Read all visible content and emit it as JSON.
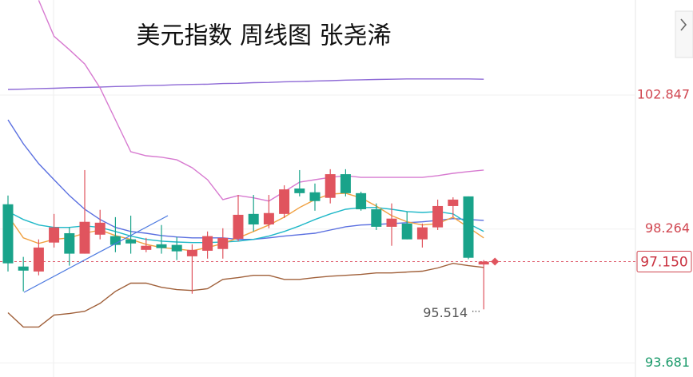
{
  "chart_data": {
    "type": "candlestick",
    "title": "美元指数 周线图 张尧浠",
    "ylim": [
      93.2,
      106.1
    ],
    "yticks": [
      102.847,
      98.264,
      93.681
    ],
    "ytick_colors": [
      "#d0454f",
      "#d0454f",
      "#1a9a6a"
    ],
    "grid": true,
    "up_color": "#e0545e",
    "down_color": "#19a38a",
    "open": [
      99.11,
      96.98,
      96.81,
      97.8,
      98.12,
      97.42,
      98.07,
      98.02,
      97.91,
      97.55,
      97.74,
      97.72,
      97.33,
      97.52,
      97.58,
      97.93,
      98.78,
      98.42,
      98.78,
      99.65,
      99.52,
      99.33,
      100.14,
      99.49,
      98.94,
      98.34,
      98.45,
      97.91,
      98.32,
      99.05,
      99.38,
      97.05
    ],
    "high": [
      99.41,
      97.31,
      97.91,
      98.78,
      98.32,
      100.28,
      98.92,
      98.67,
      98.72,
      97.96,
      98.4,
      97.99,
      97.74,
      98.18,
      98.29,
      99.43,
      99.43,
      99.43,
      99.76,
      100.28,
      99.82,
      100.31,
      100.31,
      99.54,
      99.14,
      99.14,
      98.86,
      98.45,
      99.27,
      99.35,
      99.38,
      97.2
    ],
    "low": [
      96.81,
      96.13,
      96.68,
      97.63,
      97.01,
      97.42,
      97.91,
      97.47,
      97.42,
      97.47,
      97.42,
      97.2,
      96.05,
      97.25,
      97.25,
      97.85,
      98.18,
      98.29,
      98.64,
      99.38,
      98.89,
      99.14,
      99.38,
      98.89,
      98.23,
      97.69,
      97.91,
      97.63,
      98.23,
      98.67,
      97.23,
      95.514
    ],
    "close": [
      97.09,
      96.84,
      97.63,
      98.32,
      97.42,
      98.51,
      98.48,
      97.72,
      97.77,
      97.69,
      97.61,
      97.5,
      97.55,
      98.02,
      97.96,
      98.75,
      98.42,
      98.81,
      99.62,
      99.49,
      99.22,
      100.14,
      99.49,
      98.94,
      98.34,
      98.62,
      97.91,
      98.32,
      99.05,
      99.27,
      97.28,
      97.15
    ],
    "price_line": {
      "value": 97.15,
      "label": "97.150"
    },
    "series": [
      {
        "color": "#8e6ad6",
        "values": [
          103.04,
          103.05,
          103.07,
          103.08,
          103.1,
          103.11,
          103.12,
          103.14,
          103.15,
          103.17,
          103.18,
          103.2,
          103.21,
          103.22,
          103.24,
          103.25,
          103.27,
          103.28,
          103.3,
          103.31,
          103.33,
          103.34,
          103.36,
          103.37,
          103.38,
          103.39,
          103.4,
          103.4,
          103.4,
          103.4,
          103.4,
          103.39
        ]
      },
      {
        "color": "#d77ad0",
        "values": [
          null,
          null,
          106.09,
          104.86,
          104.4,
          103.91,
          103.09,
          102.0,
          100.91,
          100.77,
          100.72,
          100.63,
          100.36,
          99.95,
          99.27,
          99.41,
          99.33,
          99.22,
          99.54,
          99.87,
          99.95,
          100.03,
          100.09,
          100.03,
          100.03,
          100.03,
          100.03,
          100.03,
          100.09,
          100.17,
          100.23,
          100.28
        ]
      },
      {
        "color": "#a0603a",
        "values": [
          95.4,
          94.91,
          94.91,
          95.32,
          95.37,
          95.45,
          95.72,
          96.13,
          96.41,
          96.41,
          96.27,
          96.19,
          96.16,
          96.22,
          96.54,
          96.6,
          96.68,
          96.68,
          96.54,
          96.54,
          96.6,
          96.65,
          96.68,
          96.71,
          96.76,
          96.76,
          96.79,
          96.82,
          96.93,
          97.09,
          97.01,
          96.95
        ]
      },
      {
        "color": "#5a6fe0",
        "values": [
          102.0,
          101.18,
          100.5,
          99.95,
          99.41,
          98.94,
          98.59,
          98.32,
          98.18,
          98.12,
          98.04,
          97.99,
          97.96,
          97.96,
          97.96,
          97.91,
          97.91,
          97.96,
          98.02,
          98.07,
          98.12,
          98.23,
          98.34,
          98.4,
          98.42,
          98.45,
          98.48,
          98.51,
          98.56,
          98.62,
          98.59,
          98.56
        ]
      },
      {
        "color": "#1fb8c8",
        "values": [
          98.86,
          98.59,
          98.4,
          98.32,
          98.32,
          98.37,
          98.32,
          98.18,
          98.02,
          97.91,
          97.85,
          97.82,
          97.8,
          97.8,
          97.82,
          97.85,
          97.91,
          98.02,
          98.18,
          98.37,
          98.59,
          98.78,
          98.94,
          99.0,
          99.0,
          98.94,
          98.86,
          98.83,
          98.86,
          98.78,
          98.45,
          98.18
        ]
      },
      {
        "color": "#f0a040",
        "values": [
          98.72,
          97.96,
          97.77,
          97.91,
          97.96,
          98.12,
          98.23,
          98.04,
          97.91,
          97.74,
          97.63,
          97.58,
          97.52,
          97.63,
          97.77,
          97.96,
          98.18,
          98.4,
          98.67,
          99.0,
          99.27,
          99.46,
          99.49,
          99.33,
          99.05,
          98.72,
          98.51,
          98.4,
          98.45,
          98.67,
          98.32,
          97.96
        ]
      }
    ]
  }
}
